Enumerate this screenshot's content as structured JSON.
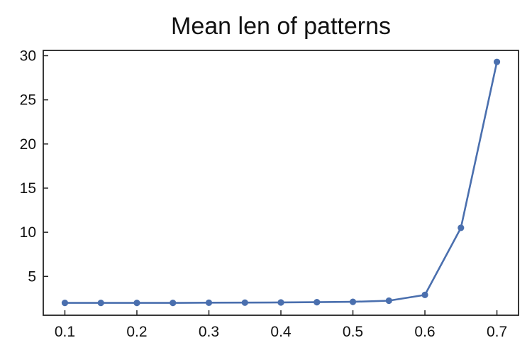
{
  "chart_data": {
    "type": "line",
    "title": "Mean len of patterns",
    "xlabel": "",
    "ylabel": "",
    "x": [
      0.1,
      0.15,
      0.2,
      0.25,
      0.3,
      0.35,
      0.4,
      0.45,
      0.5,
      0.55,
      0.6,
      0.65,
      0.7
    ],
    "series": [
      {
        "values": [
          2.0,
          2.0,
          2.0,
          2.0,
          2.02,
          2.03,
          2.05,
          2.08,
          2.12,
          2.25,
          2.9,
          10.5,
          29.3
        ],
        "color": "#4a6fae",
        "marker": "circle"
      }
    ],
    "xlim": [
      0.07,
      0.73
    ],
    "ylim": [
      0.6,
      30.6
    ],
    "xticks": [
      0.1,
      0.2,
      0.3,
      0.4,
      0.5,
      0.6,
      0.7
    ],
    "xtick_labels": [
      "0.1",
      "0.2",
      "0.3",
      "0.4",
      "0.5",
      "0.6",
      "0.7"
    ],
    "yticks": [
      5,
      10,
      15,
      20,
      25,
      30
    ],
    "ytick_labels": [
      "5",
      "10",
      "15",
      "20",
      "25",
      "30"
    ],
    "grid": false,
    "legend": "none"
  }
}
